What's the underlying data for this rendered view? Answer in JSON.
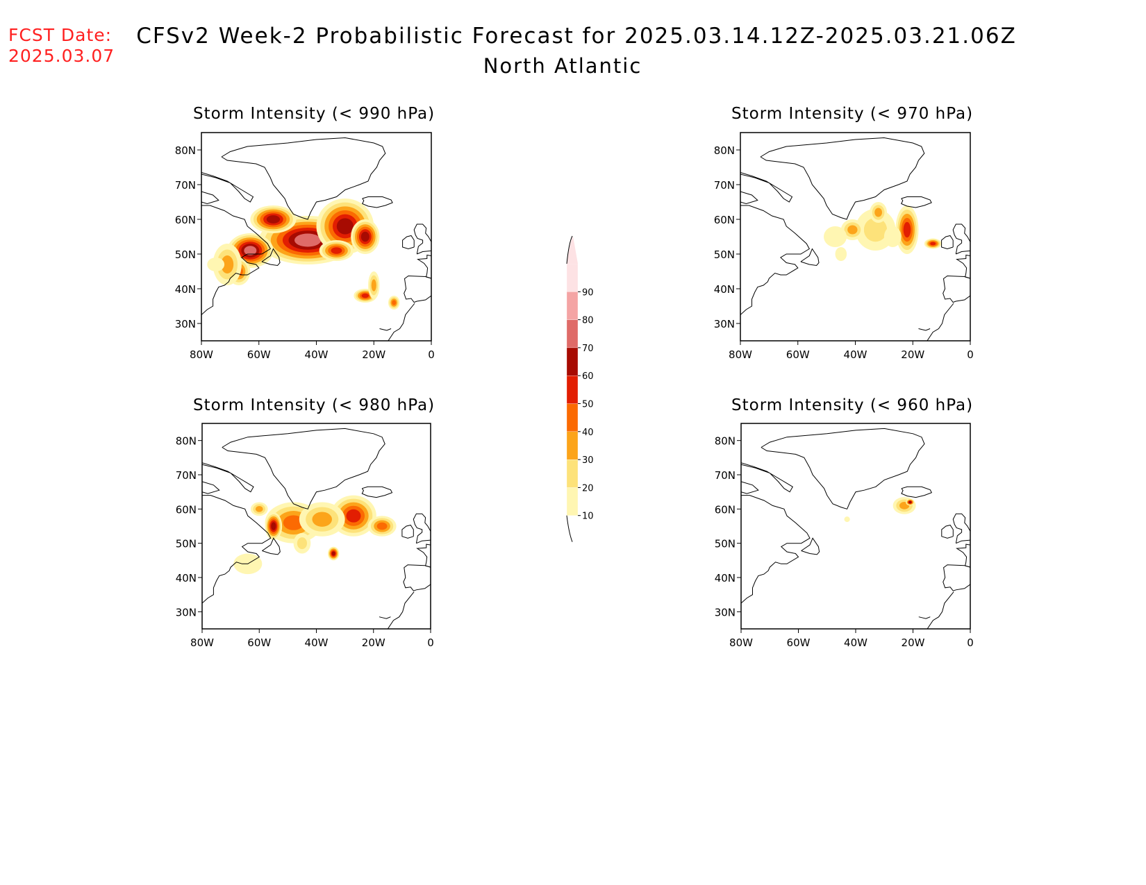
{
  "header": {
    "fcst_label": "FCST Date:",
    "fcst_date": "2025.03.07",
    "title": "CFSv2 Week-2 Probabilistic Forecast for 2025.03.14.12Z-2025.03.21.06Z",
    "subtitle": "North Atlantic"
  },
  "map_extent": {
    "lon": [
      -80,
      0
    ],
    "lat": [
      25,
      85
    ]
  },
  "axes": {
    "lon_ticks": [
      -80,
      -60,
      -40,
      -20,
      0
    ],
    "lon_labels": [
      "80W",
      "60W",
      "40W",
      "20W",
      "0"
    ],
    "lat_ticks": [
      80,
      70,
      60,
      50,
      40,
      30
    ],
    "lat_labels": [
      "80N",
      "70N",
      "60N",
      "50N",
      "40N",
      "30N"
    ]
  },
  "colorbar": {
    "levels": [
      10,
      20,
      30,
      40,
      50,
      60,
      70,
      80,
      90
    ],
    "labels": [
      "10",
      "20",
      "30",
      "40",
      "50",
      "60",
      "70",
      "80",
      "90"
    ],
    "colors": [
      "#fff6b2",
      "#fde27a",
      "#fca41a",
      "#fb6a02",
      "#e21e02",
      "#a70b02",
      "#df6b68",
      "#f4a4a4",
      "#fde2e4"
    ]
  },
  "panels": [
    {
      "id": "p990",
      "title": "Storm Intensity (< 990 hPa)",
      "blobs": [
        {
          "lon": -43,
          "lat": 54,
          "rx": 17,
          "ry": 7,
          "p": 72
        },
        {
          "lon": -30,
          "lat": 58,
          "rx": 10,
          "ry": 8,
          "p": 68
        },
        {
          "lon": -63,
          "lat": 51,
          "rx": 8,
          "ry": 5,
          "p": 75
        },
        {
          "lon": -55,
          "lat": 60,
          "rx": 8,
          "ry": 4,
          "p": 60
        },
        {
          "lon": -23,
          "lat": 55,
          "rx": 5,
          "ry": 5,
          "p": 62
        },
        {
          "lon": -33,
          "lat": 51,
          "rx": 6,
          "ry": 3,
          "p": 58
        },
        {
          "lon": -67,
          "lat": 45,
          "rx": 4,
          "ry": 4,
          "p": 45
        },
        {
          "lon": -71,
          "lat": 47,
          "rx": 5,
          "ry": 6,
          "p": 35
        },
        {
          "lon": -23,
          "lat": 38,
          "rx": 4,
          "ry": 2,
          "p": 55
        },
        {
          "lon": -20,
          "lat": 41,
          "rx": 2,
          "ry": 4,
          "p": 30
        },
        {
          "lon": -13,
          "lat": 36,
          "rx": 2,
          "ry": 2,
          "p": 40
        },
        {
          "lon": -75,
          "lat": 47,
          "rx": 3,
          "ry": 2,
          "p": 18
        }
      ]
    },
    {
      "id": "p970",
      "title": "Storm Intensity (< 970 hPa)",
      "blobs": [
        {
          "lon": -33,
          "lat": 57,
          "rx": 7,
          "ry": 6,
          "p": 28
        },
        {
          "lon": -22,
          "lat": 57,
          "rx": 4,
          "ry": 7,
          "p": 52
        },
        {
          "lon": -32,
          "lat": 62,
          "rx": 3,
          "ry": 3,
          "p": 38
        },
        {
          "lon": -41,
          "lat": 57,
          "rx": 4,
          "ry": 3,
          "p": 30
        },
        {
          "lon": -13,
          "lat": 53,
          "rx": 3,
          "ry": 1.5,
          "p": 55
        },
        {
          "lon": -47,
          "lat": 55,
          "rx": 4,
          "ry": 3,
          "p": 18
        },
        {
          "lon": -45,
          "lat": 50,
          "rx": 2,
          "ry": 2,
          "p": 15
        },
        {
          "lon": -27,
          "lat": 55,
          "rx": 3,
          "ry": 3,
          "p": 15
        }
      ]
    },
    {
      "id": "p980",
      "title": "Storm Intensity (< 980 hPa)",
      "blobs": [
        {
          "lon": -27,
          "lat": 58,
          "rx": 8,
          "ry": 6,
          "p": 58
        },
        {
          "lon": -48,
          "lat": 56,
          "rx": 10,
          "ry": 6,
          "p": 45
        },
        {
          "lon": -38,
          "lat": 57,
          "rx": 8,
          "ry": 5,
          "p": 38
        },
        {
          "lon": -55,
          "lat": 55,
          "rx": 3,
          "ry": 4,
          "p": 62
        },
        {
          "lon": -17,
          "lat": 55,
          "rx": 5,
          "ry": 3,
          "p": 45
        },
        {
          "lon": -34,
          "lat": 47,
          "rx": 2,
          "ry": 2,
          "p": 60
        },
        {
          "lon": -64,
          "lat": 44,
          "rx": 5,
          "ry": 3,
          "p": 18
        },
        {
          "lon": -45,
          "lat": 50,
          "rx": 3,
          "ry": 3,
          "p": 22
        },
        {
          "lon": -60,
          "lat": 60,
          "rx": 3,
          "ry": 2,
          "p": 30
        }
      ]
    },
    {
      "id": "p960",
      "title": "Storm Intensity (< 960 hPa)",
      "blobs": [
        {
          "lon": -23,
          "lat": 61,
          "rx": 4,
          "ry": 2.5,
          "p": 35
        },
        {
          "lon": -21,
          "lat": 62,
          "rx": 1.5,
          "ry": 1,
          "p": 62
        },
        {
          "lon": -43,
          "lat": 57,
          "rx": 1,
          "ry": 0.8,
          "p": 18
        }
      ]
    }
  ]
}
